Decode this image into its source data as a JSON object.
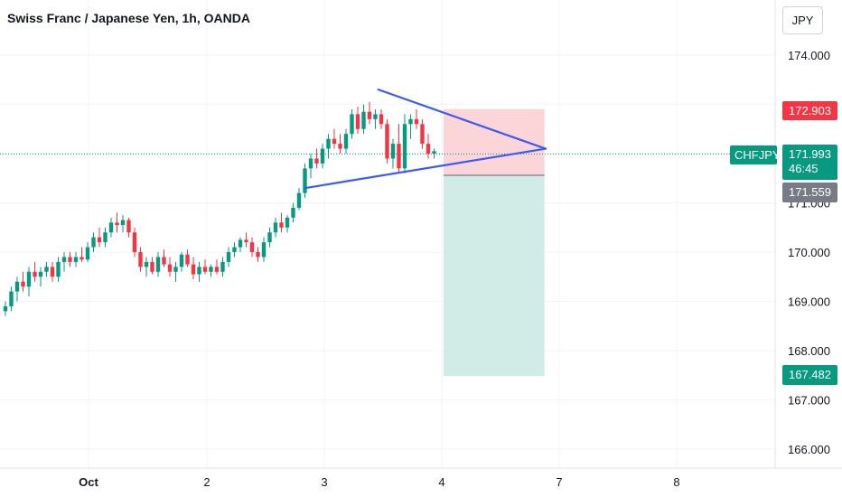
{
  "header": {
    "title": "Swiss Franc / Japanese Yen, 1h, OANDA",
    "currency_button": "JPY"
  },
  "price_tags": {
    "symbol": "CHFJPY",
    "current_price": "171.993",
    "countdown": "46:45",
    "stop_price": "172.903",
    "entry_price": "171.559",
    "target_price": "167.482"
  },
  "colors": {
    "up": "#089981",
    "down": "#f23645",
    "trendline": "#3d5af1",
    "stop_zone": "#fbd5d8",
    "target_zone": "#d1ece6",
    "current_tag": "#089981",
    "stop_tag": "#f23645",
    "entry_tag": "#787b86"
  },
  "chart_data": {
    "type": "candlestick",
    "title": "Swiss Franc / Japanese Yen, 1h, OANDA",
    "ylim": [
      165.5,
      175.0
    ],
    "y_ticks": [
      166.0,
      167.0,
      168.0,
      169.0,
      170.0,
      171.0,
      172.0,
      173.0,
      174.0
    ],
    "y_tick_labels": [
      "166.000",
      "167.000",
      "168.000",
      "169.000",
      "170.000",
      "171.000",
      "",
      "",
      "174.000"
    ],
    "x_ticks": [
      {
        "label": "Oct",
        "bold": true
      },
      {
        "label": "2",
        "bold": false
      },
      {
        "label": "3",
        "bold": false
      },
      {
        "label": "4",
        "bold": false
      },
      {
        "label": "7",
        "bold": false
      },
      {
        "label": "8",
        "bold": false
      }
    ],
    "candles": [
      [
        168.8,
        169.0,
        168.7,
        168.9
      ],
      [
        168.9,
        169.3,
        168.8,
        169.2
      ],
      [
        169.2,
        169.5,
        169.0,
        169.4
      ],
      [
        169.4,
        169.6,
        169.2,
        169.3
      ],
      [
        169.3,
        169.7,
        169.1,
        169.6
      ],
      [
        169.6,
        169.8,
        169.4,
        169.5
      ],
      [
        169.5,
        169.7,
        169.3,
        169.6
      ],
      [
        169.6,
        169.8,
        169.5,
        169.7
      ],
      [
        169.7,
        169.8,
        169.4,
        169.5
      ],
      [
        169.5,
        169.9,
        169.4,
        169.8
      ],
      [
        169.8,
        170.0,
        169.6,
        169.9
      ],
      [
        169.9,
        170.0,
        169.7,
        169.8
      ],
      [
        169.8,
        170.0,
        169.7,
        169.9
      ],
      [
        169.9,
        170.1,
        169.8,
        169.85
      ],
      [
        169.85,
        170.2,
        169.8,
        170.1
      ],
      [
        170.1,
        170.4,
        170.0,
        170.3
      ],
      [
        170.3,
        170.5,
        170.1,
        170.2
      ],
      [
        170.2,
        170.5,
        170.1,
        170.4
      ],
      [
        170.4,
        170.7,
        170.3,
        170.6
      ],
      [
        170.6,
        170.8,
        170.4,
        170.55
      ],
      [
        170.55,
        170.75,
        170.4,
        170.65
      ],
      [
        170.65,
        170.7,
        170.3,
        170.4
      ],
      [
        170.4,
        170.5,
        169.9,
        170.0
      ],
      [
        170.0,
        170.1,
        169.6,
        169.7
      ],
      [
        169.7,
        169.9,
        169.5,
        169.8
      ],
      [
        169.8,
        169.9,
        169.55,
        169.6
      ],
      [
        169.6,
        170.0,
        169.5,
        169.9
      ],
      [
        169.9,
        170.05,
        169.7,
        169.75
      ],
      [
        169.75,
        169.9,
        169.5,
        169.6
      ],
      [
        169.6,
        169.8,
        169.4,
        169.7
      ],
      [
        169.7,
        170.0,
        169.6,
        169.95
      ],
      [
        169.95,
        170.05,
        169.7,
        169.75
      ],
      [
        169.75,
        169.9,
        169.45,
        169.55
      ],
      [
        169.55,
        169.8,
        169.4,
        169.7
      ],
      [
        169.7,
        169.85,
        169.55,
        169.6
      ],
      [
        169.6,
        169.75,
        169.5,
        169.7
      ],
      [
        169.7,
        169.85,
        169.55,
        169.6
      ],
      [
        169.6,
        169.9,
        169.5,
        169.8
      ],
      [
        169.8,
        170.1,
        169.7,
        170.0
      ],
      [
        170.0,
        170.2,
        169.9,
        170.1
      ],
      [
        170.1,
        170.3,
        170.0,
        170.25
      ],
      [
        170.25,
        170.4,
        170.1,
        170.2
      ],
      [
        170.2,
        170.3,
        169.9,
        170.0
      ],
      [
        170.0,
        170.1,
        169.8,
        169.9
      ],
      [
        169.9,
        170.3,
        169.8,
        170.2
      ],
      [
        170.2,
        170.5,
        170.1,
        170.4
      ],
      [
        170.4,
        170.7,
        170.3,
        170.6
      ],
      [
        170.6,
        170.8,
        170.4,
        170.5
      ],
      [
        170.5,
        170.75,
        170.4,
        170.7
      ],
      [
        170.7,
        171.0,
        170.6,
        170.9
      ],
      [
        170.9,
        171.3,
        170.85,
        171.2
      ],
      [
        171.2,
        171.8,
        171.1,
        171.7
      ],
      [
        171.7,
        172.0,
        171.5,
        171.9
      ],
      [
        171.9,
        172.1,
        171.7,
        171.8
      ],
      [
        171.8,
        172.2,
        171.7,
        172.1
      ],
      [
        172.1,
        172.4,
        171.9,
        172.3
      ],
      [
        172.3,
        172.5,
        172.1,
        172.2
      ],
      [
        172.2,
        172.4,
        172.0,
        172.1
      ],
      [
        172.1,
        172.5,
        172.0,
        172.4
      ],
      [
        172.4,
        172.9,
        172.3,
        172.8
      ],
      [
        172.8,
        172.95,
        172.4,
        172.5
      ],
      [
        172.5,
        173.0,
        172.4,
        172.85
      ],
      [
        172.85,
        173.05,
        172.6,
        172.7
      ],
      [
        172.7,
        172.9,
        172.5,
        172.8
      ],
      [
        172.8,
        172.9,
        172.5,
        172.6
      ],
      [
        172.6,
        172.7,
        171.8,
        171.9
      ],
      [
        171.9,
        172.3,
        171.7,
        172.2
      ],
      [
        172.2,
        172.6,
        171.6,
        171.7
      ],
      [
        171.7,
        172.8,
        171.6,
        172.6
      ],
      [
        172.6,
        172.8,
        172.3,
        172.7
      ],
      [
        172.7,
        172.9,
        172.5,
        172.6
      ],
      [
        172.6,
        172.7,
        172.1,
        172.2
      ],
      [
        172.2,
        172.4,
        171.9,
        172.0
      ],
      [
        172.0,
        172.1,
        171.9,
        172.05
      ]
    ],
    "trendlines": [
      {
        "from": {
          "bar": 63.5,
          "price": 173.3
        },
        "to": {
          "bar": 92.0,
          "price": 172.1
        }
      },
      {
        "from": {
          "bar": 51.0,
          "price": 171.3
        },
        "to": {
          "bar": 92.0,
          "price": 172.1
        }
      }
    ],
    "current_price": 171.993,
    "position": {
      "type": "short",
      "entry": 171.559,
      "stop": 172.903,
      "target": 167.482,
      "start_bar": 74.6,
      "end_bar": 91.8
    }
  }
}
